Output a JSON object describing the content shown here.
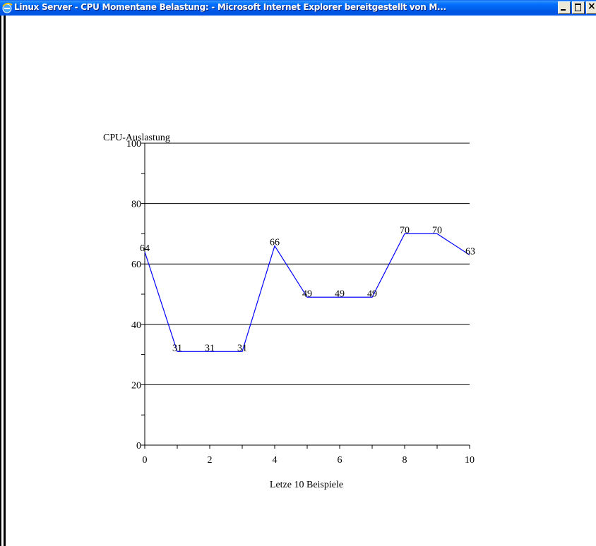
{
  "window": {
    "title": "Linux Server - CPU Momentane Belastung: - Microsoft Internet Explorer bereitgestellt von M..."
  },
  "icons": {
    "app": "internet-explorer-icon",
    "minimize": "minimize-icon",
    "maximize": "maximize-icon",
    "close": "close-icon",
    "close_glyph": "×"
  },
  "chart_data": {
    "type": "line",
    "ylabel": "CPU-Auslastung",
    "xlabel": "Letze 10 Beispiele",
    "xlim": [
      0,
      10
    ],
    "ylim": [
      0,
      100
    ],
    "x_ticks": [
      0,
      2,
      4,
      6,
      8,
      10
    ],
    "y_ticks": [
      0,
      20,
      40,
      60,
      80,
      100
    ],
    "grid": "horizontal",
    "x": [
      0,
      1,
      2,
      3,
      4,
      5,
      6,
      7,
      8,
      9,
      10
    ],
    "values": [
      64,
      31,
      31,
      31,
      66,
      49,
      49,
      49,
      70,
      70,
      63
    ],
    "line_color": "#0000ff"
  }
}
